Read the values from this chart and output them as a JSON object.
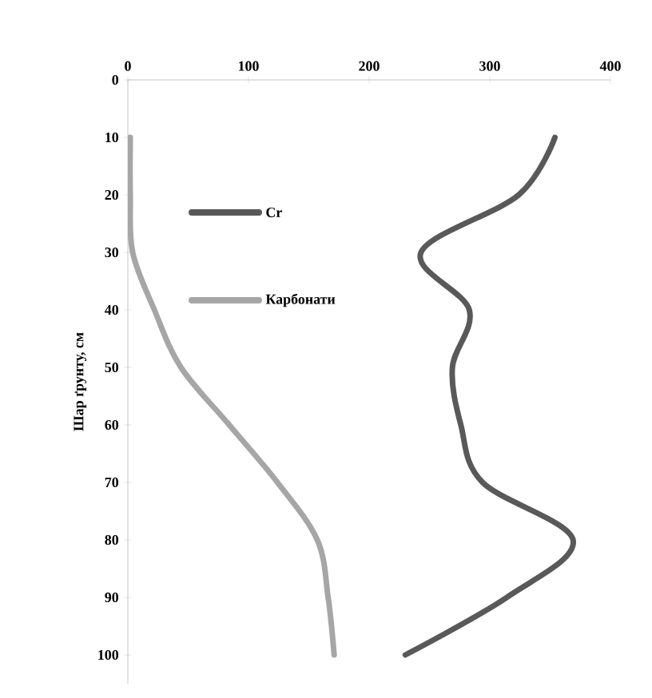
{
  "chart_data": {
    "type": "line",
    "ylabel": "Шар ґрунту, см",
    "xlim": [
      0,
      400
    ],
    "xticks": [
      0,
      100,
      200,
      300,
      400
    ],
    "ylim": [
      105,
      0
    ],
    "yticks": [
      0,
      10,
      20,
      30,
      40,
      50,
      60,
      70,
      80,
      90,
      100
    ],
    "grid": false,
    "legend": "left",
    "marker": "none",
    "line_style": "solid",
    "series": [
      {
        "name": "Cr",
        "color": "#595959",
        "x": [
          354,
          324,
          243,
          283,
          269,
          276,
          294,
          369,
          314,
          230
        ],
        "values": [
          10,
          20,
          30,
          40,
          50,
          60,
          70,
          80,
          90,
          100
        ]
      },
      {
        "name": "Карбонати",
        "color": "#a6a6a6",
        "x": [
          2,
          2,
          4,
          22,
          44,
          84,
          124,
          157,
          166,
          171
        ],
        "values": [
          10,
          20,
          30,
          40,
          50,
          60,
          70,
          80,
          90,
          100
        ]
      }
    ]
  }
}
